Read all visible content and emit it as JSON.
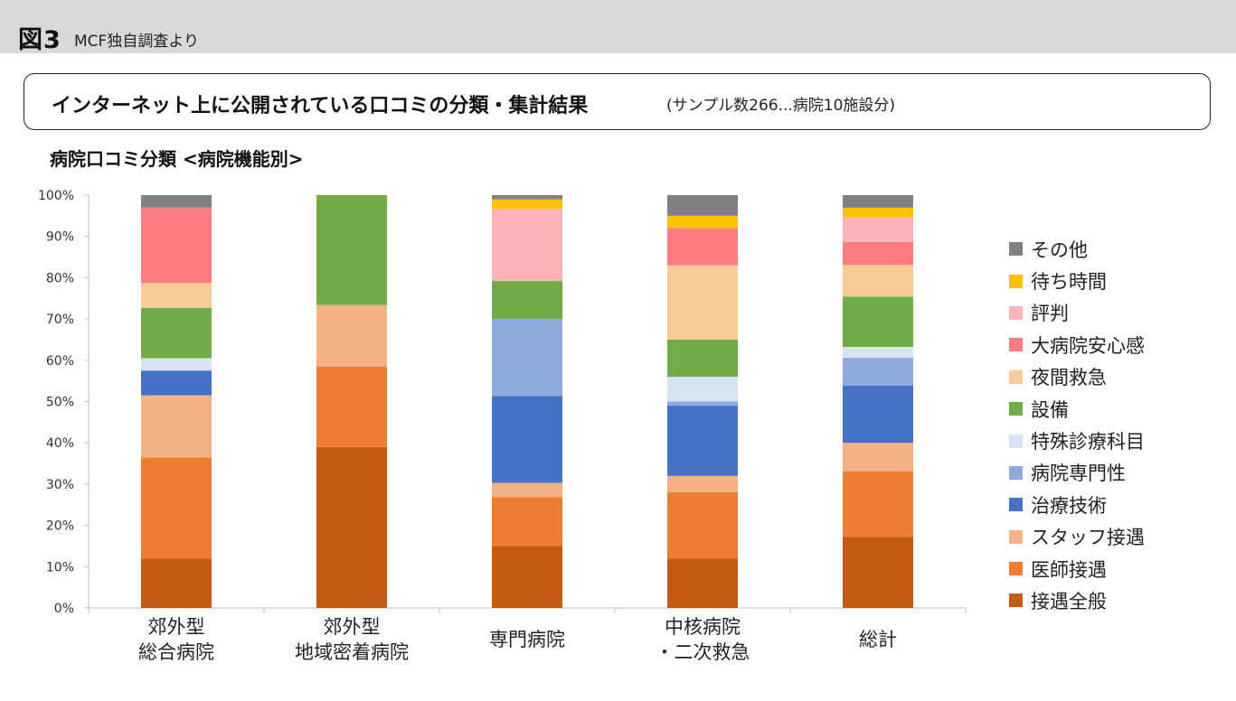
{
  "header": {
    "figure_label": "図3",
    "source": "MCF独自調査より"
  },
  "title_box": {
    "title": "インターネット上に公開されている口コミの分類・集計結果",
    "subtitle": "(サンプル数266...病院10施設分)"
  },
  "chart_heading": "病院口コミ分類 <病院機能別>",
  "chart_data": {
    "type": "bar",
    "stacked": true,
    "normalized": true,
    "title": "病院口コミ分類 <病院機能別>",
    "categories": [
      [
        "郊外型",
        "総合病院"
      ],
      [
        "郊外型",
        "地域密着病院"
      ],
      [
        "専門病院"
      ],
      [
        "中核病院",
        "・二次救急"
      ],
      [
        "総計"
      ]
    ],
    "ylim": [
      0,
      100
    ],
    "yticks": [
      "0%",
      "10%",
      "20%",
      "30%",
      "40%",
      "50%",
      "60%",
      "70%",
      "80%",
      "90%",
      "100%"
    ],
    "grid": false,
    "legend_position": "right",
    "series": [
      {
        "name": "接遇全般",
        "color": "#c55a11",
        "values": [
          12,
          34,
          15,
          12,
          17
        ]
      },
      {
        "name": "医師接遇",
        "color": "#ed7d31",
        "values": [
          24.5,
          17,
          11.8,
          16,
          15.7
        ]
      },
      {
        "name": "スタッフ接遇",
        "color": "#f4b183",
        "values": [
          15,
          13,
          3.5,
          4,
          6.8
        ]
      },
      {
        "name": "治療技術",
        "color": "#4472c4",
        "values": [
          6,
          0,
          21,
          17,
          13.7
        ]
      },
      {
        "name": "病院専門性",
        "color": "#8faadc",
        "values": [
          0,
          0,
          18.7,
          1,
          6.6
        ]
      },
      {
        "name": "特殊診療科目",
        "color": "#dae3f3",
        "values": [
          3,
          0,
          0,
          6,
          2.6
        ]
      },
      {
        "name": "設備",
        "color": "#70ad47",
        "values": [
          12.2,
          23.2,
          9.2,
          9,
          12
        ]
      },
      {
        "name": "夜間救急",
        "color": "#f8cb98",
        "values": [
          6,
          0,
          0,
          18,
          7.6
        ]
      },
      {
        "name": "大病院安心感",
        "color": "#ff7c80",
        "values": [
          18.3,
          0,
          0,
          9,
          5.5
        ]
      },
      {
        "name": "評判",
        "color": "#ffb3b8",
        "values": [
          0,
          0,
          17.5,
          0,
          6
        ]
      },
      {
        "name": "待ち時間",
        "color": "#ffc000",
        "values": [
          0,
          0,
          2.3,
          3,
          2.2
        ]
      },
      {
        "name": "その他",
        "color": "#808080",
        "values": [
          3,
          0,
          1,
          5,
          3
        ]
      }
    ],
    "extra_series_note_free": null
  },
  "legend": [
    {
      "label": "その他",
      "color": "#808080"
    },
    {
      "label": "待ち時間",
      "color": "#ffc000"
    },
    {
      "label": "評判",
      "color": "#ffb3b8"
    },
    {
      "label": "大病院安心感",
      "color": "#ff7c80"
    },
    {
      "label": "夜間救急",
      "color": "#f8cb98"
    },
    {
      "label": "設備",
      "color": "#70ad47"
    },
    {
      "label": "特殊診療科目",
      "color": "#dae3f3"
    },
    {
      "label": "病院専門性",
      "color": "#8faadc"
    },
    {
      "label": "治療技術",
      "color": "#4472c4"
    },
    {
      "label": "スタッフ接遇",
      "color": "#f4b183"
    },
    {
      "label": "医師接遇",
      "color": "#ed7d31"
    },
    {
      "label": "接遇全般",
      "color": "#c55a11"
    }
  ]
}
